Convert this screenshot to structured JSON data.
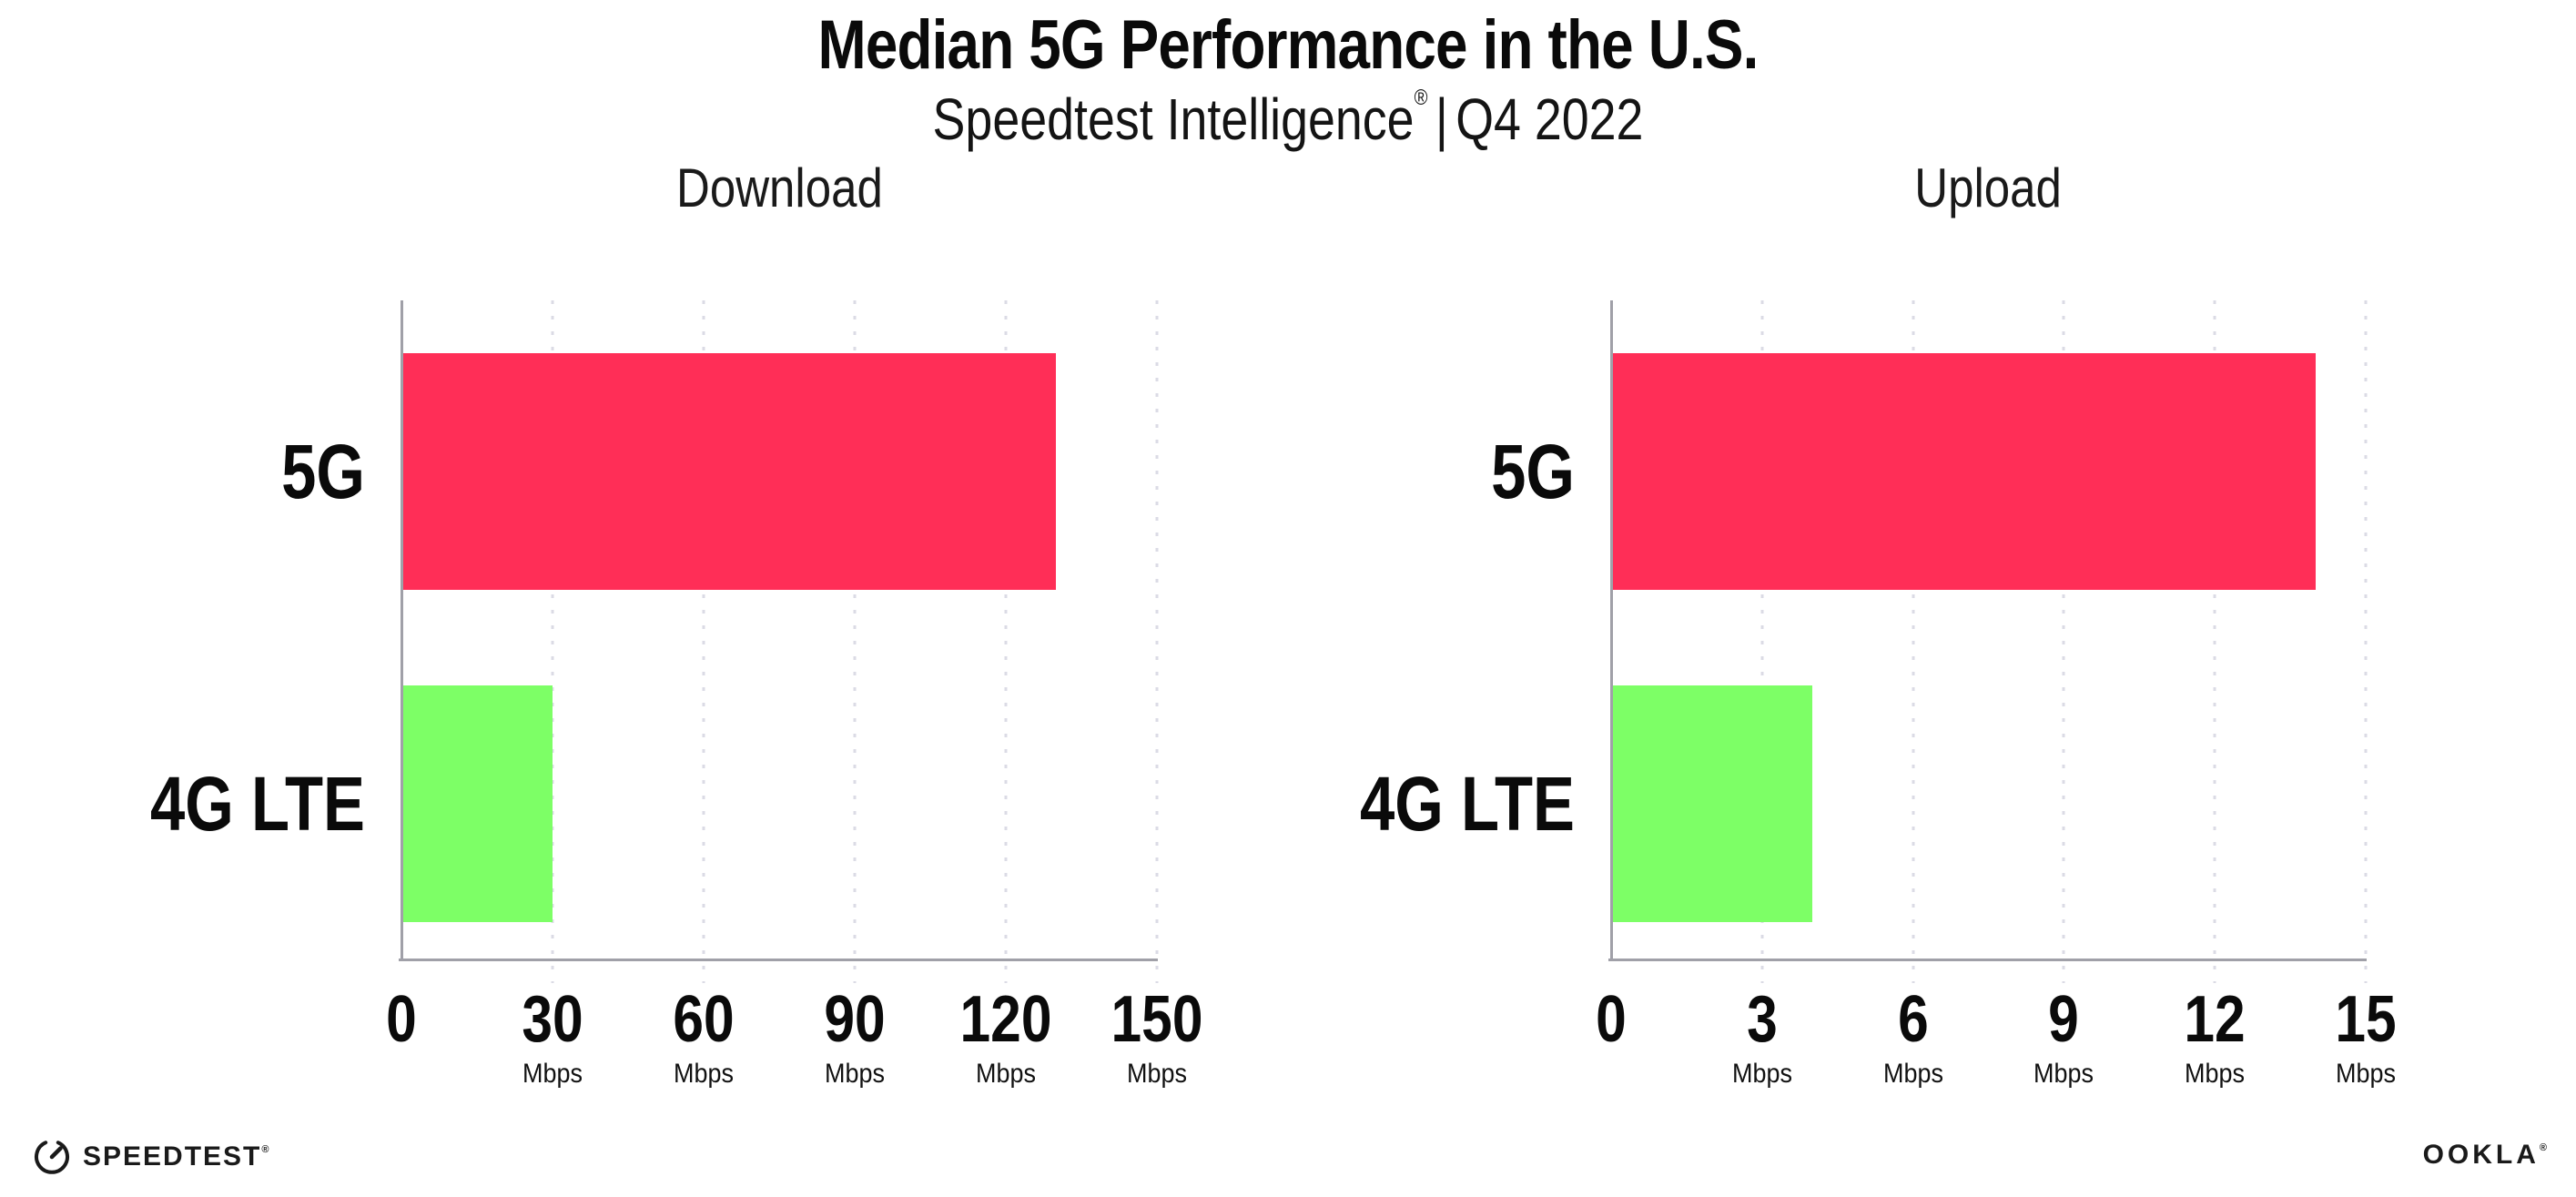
{
  "header": {
    "title": "Median 5G Performance in the U.S.",
    "subtitle_brand": "Speedtest Intelligence",
    "subtitle_reg": "®",
    "subtitle_separator": "|",
    "subtitle_period": "Q4 2022"
  },
  "colors": {
    "bar_5g": "#FF2E57",
    "bar_4g_lte": "#7DFF66",
    "axis": "#A0A0A8",
    "gridline": "#DBDBE5",
    "background": "#FFFFFF",
    "text": "#0A0A0A"
  },
  "chart_data": [
    {
      "type": "bar",
      "orientation": "horizontal",
      "title": "Download",
      "categories": [
        "5G",
        "4G LTE"
      ],
      "values": [
        130,
        30
      ],
      "unit": "Mbps",
      "xlim": [
        0,
        150
      ],
      "xticks": [
        0,
        30,
        60,
        90,
        120,
        150
      ],
      "tick_unit_label": "Mbps",
      "grid": "vertical-dotted",
      "legend": "none",
      "bar_colors": [
        "#FF2E57",
        "#7DFF66"
      ]
    },
    {
      "type": "bar",
      "orientation": "horizontal",
      "title": "Upload",
      "categories": [
        "5G",
        "4G LTE"
      ],
      "values": [
        14,
        4
      ],
      "unit": "Mbps",
      "xlim": [
        0,
        15
      ],
      "xticks": [
        0,
        3,
        6,
        9,
        12,
        15
      ],
      "tick_unit_label": "Mbps",
      "grid": "vertical-dotted",
      "legend": "none",
      "bar_colors": [
        "#FF2E57",
        "#7DFF66"
      ]
    }
  ],
  "footer": {
    "speedtest_wordmark": "SPEEDTEST",
    "speedtest_reg": "®",
    "ookla_wordmark": "OOKLA",
    "ookla_reg": "®"
  }
}
